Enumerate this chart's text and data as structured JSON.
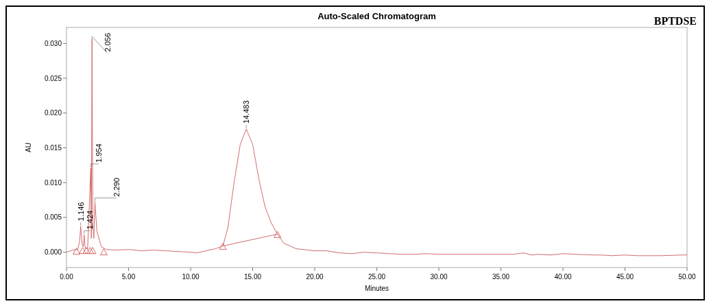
{
  "chart_data": {
    "type": "line",
    "title": "Auto-Scaled Chromatogram",
    "xlabel": "Minutes",
    "ylabel": "AU",
    "xlim": [
      0,
      50
    ],
    "ylim": [
      -0.0022,
      0.0323
    ],
    "xticks": [
      {
        "value": 0,
        "label": "0.00"
      },
      {
        "value": 5,
        "label": "5.00"
      },
      {
        "value": 10,
        "label": "10.00"
      },
      {
        "value": 15,
        "label": "15.00"
      },
      {
        "value": 20,
        "label": "20.00"
      },
      {
        "value": 25,
        "label": "25.00"
      },
      {
        "value": 30,
        "label": "30.00"
      },
      {
        "value": 35,
        "label": "35.00"
      },
      {
        "value": 40,
        "label": "40.00"
      },
      {
        "value": 45,
        "label": "45.00"
      },
      {
        "value": 50,
        "label": "50.00"
      }
    ],
    "yticks": [
      {
        "value": 0,
        "label": "0.000"
      },
      {
        "value": 0.005,
        "label": "0.005"
      },
      {
        "value": 0.01,
        "label": "0.010"
      },
      {
        "value": 0.015,
        "label": "0.015"
      },
      {
        "value": 0.02,
        "label": "0.020"
      },
      {
        "value": 0.025,
        "label": "0.025"
      },
      {
        "value": 0.03,
        "label": "0.030"
      }
    ],
    "grid": false,
    "series": [
      {
        "color": "#d46a6a",
        "marker": "none",
        "x": [
          0,
          0.5,
          0.9,
          1.05,
          1.146,
          1.25,
          1.35,
          1.424,
          1.5,
          1.7,
          1.954,
          1.98,
          2.0,
          2.056,
          2.12,
          2.2,
          2.29,
          2.45,
          2.8,
          3.2,
          4,
          5,
          6,
          7,
          8,
          9,
          10,
          10.5,
          11,
          12,
          12.6,
          13,
          13.5,
          14,
          14.483,
          15,
          15.5,
          16,
          16.5,
          17,
          17.5,
          18.5,
          20,
          21,
          22,
          23,
          24,
          25,
          26,
          27,
          28,
          29,
          30,
          32,
          34,
          36,
          36.8,
          37.5,
          38,
          39,
          40,
          41,
          42.5,
          43,
          44,
          45,
          46,
          48,
          49.5,
          50
        ],
        "values": [
          0,
          0.0003,
          0.0004,
          0.0015,
          0.0037,
          0.0012,
          0.0008,
          0.0025,
          0.0006,
          0.0005,
          0.0121,
          0.004,
          0.002,
          0.0307,
          0.004,
          0.002,
          0.0072,
          0.003,
          0.0008,
          0.0004,
          0.0003,
          0.0004,
          0.0002,
          0.0003,
          0.0002,
          0.0001,
          0,
          -0.0001,
          0.0001,
          0.0005,
          0.0009,
          0.0035,
          0.01,
          0.0155,
          0.0177,
          0.0155,
          0.0105,
          0.0065,
          0.0042,
          0.0026,
          0.0013,
          0.0005,
          0.0002,
          0.0002,
          -0.0001,
          -0.0002,
          0,
          -0.0001,
          -0.0002,
          -0.0003,
          -0.0003,
          -0.0002,
          -0.0003,
          -0.0003,
          -0.0003,
          -0.0003,
          -0.0001,
          -0.0004,
          -0.0003,
          -0.0004,
          -0.0002,
          -0.0003,
          -0.0004,
          -0.0004,
          -0.0005,
          -0.0004,
          -0.0005,
          -0.0005,
          -0.0004,
          -0.0004
        ]
      },
      {
        "color": "#d46a6a",
        "marker": "none",
        "x": [
          12.6,
          17.0
        ],
        "values": [
          0.0009,
          0.0026
        ]
      },
      {
        "type": "scatter",
        "color": "#d46a6a",
        "marker": "triangle",
        "x": [
          0.8,
          1.3,
          1.6,
          1.9,
          2.1,
          3.0,
          12.6,
          17.0
        ],
        "values": [
          0.0002,
          0.0003,
          0.0003,
          0.0003,
          0.0003,
          0.0001,
          0.0009,
          0.0026
        ]
      }
    ],
    "annotations": [
      {
        "text": "1.146",
        "x": 1.146,
        "y": 0.0037
      },
      {
        "text": "1.424",
        "x": 1.424,
        "y": 0.0025
      },
      {
        "text": "1.954",
        "x": 1.954,
        "y": 0.0121
      },
      {
        "text": "2.056",
        "x": 2.056,
        "y": 0.0307
      },
      {
        "text": "2.290",
        "x": 2.29,
        "y": 0.0072
      },
      {
        "text": "14.483",
        "x": 14.483,
        "y": 0.0177
      },
      "BPTDSE"
    ]
  }
}
